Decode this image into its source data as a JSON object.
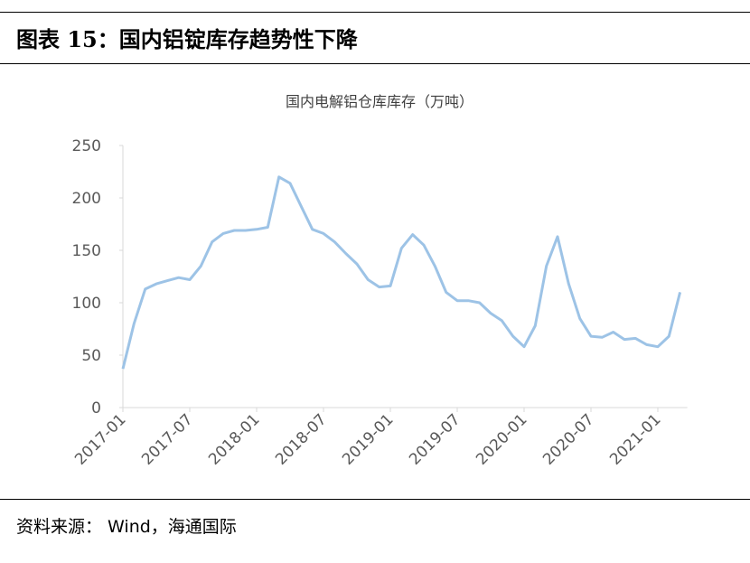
{
  "header": {
    "title": "图表 15：国内铝锭库存趋势性下降"
  },
  "source": "资料来源： Wind，海通国际",
  "chart_data": {
    "type": "line",
    "title": "国内电解铝仓库库存（万吨）",
    "x": [
      "2017-01",
      "2017-02",
      "2017-03",
      "2017-04",
      "2017-05",
      "2017-06",
      "2017-07",
      "2017-08",
      "2017-09",
      "2017-10",
      "2017-11",
      "2017-12",
      "2018-01",
      "2018-02",
      "2018-03",
      "2018-04",
      "2018-05",
      "2018-06",
      "2018-07",
      "2018-08",
      "2018-09",
      "2018-10",
      "2018-11",
      "2018-12",
      "2019-01",
      "2019-02",
      "2019-03",
      "2019-04",
      "2019-05",
      "2019-06",
      "2019-07",
      "2019-08",
      "2019-09",
      "2019-10",
      "2019-11",
      "2019-12",
      "2020-01",
      "2020-02",
      "2020-03",
      "2020-04",
      "2020-05",
      "2020-06",
      "2020-07",
      "2020-08",
      "2020-09",
      "2020-10",
      "2020-11",
      "2020-12",
      "2021-01",
      "2021-02",
      "2021-03"
    ],
    "series": [
      {
        "name": "国内电解铝仓库库存",
        "color": "#9dc3e6",
        "values": [
          37,
          80,
          113,
          118,
          121,
          124,
          122,
          135,
          158,
          166,
          169,
          169,
          170,
          172,
          220,
          214,
          192,
          170,
          166,
          158,
          147,
          137,
          122,
          115,
          116,
          152,
          165,
          155,
          135,
          110,
          102,
          102,
          100,
          90,
          83,
          68,
          58,
          78,
          135,
          163,
          118,
          85,
          68,
          67,
          72,
          65,
          66,
          60,
          58,
          68,
          110
        ]
      }
    ],
    "xtick_every": 6,
    "ylim": [
      0,
      250
    ],
    "yticks": [
      0,
      50,
      100,
      150,
      200,
      250
    ],
    "grid": false
  }
}
